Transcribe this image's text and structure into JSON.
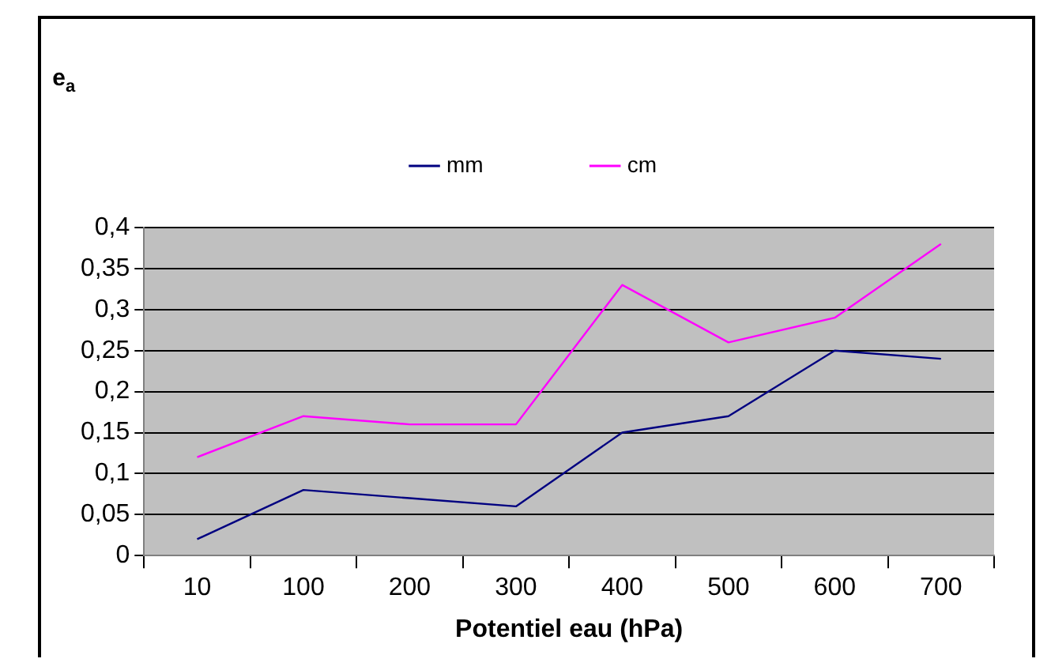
{
  "chart_data": {
    "type": "line",
    "xlabel": "Potentiel eau (hPa)",
    "ylabel": "e$_{a}$",
    "categories": [
      "10",
      "100",
      "200",
      "300",
      "400",
      "500",
      "600",
      "700"
    ],
    "series": [
      {
        "name": "mm",
        "color": "#000080",
        "values": [
          0.02,
          0.08,
          0.07,
          0.06,
          0.15,
          0.17,
          0.25,
          0.24
        ]
      },
      {
        "name": "cm",
        "color": "#ff00ff",
        "values": [
          0.12,
          0.17,
          0.16,
          0.16,
          0.33,
          0.26,
          0.29,
          0.38
        ]
      }
    ],
    "ylim": [
      0,
      0.4
    ],
    "yticks": [
      0,
      {
        "value": 0.05,
        "label": "0,05"
      },
      {
        "value": 0.1,
        "label": "0,1"
      },
      {
        "value": 0.15,
        "label": "0,15"
      },
      {
        "value": 0.2,
        "label": "0,2"
      },
      {
        "value": 0.25,
        "label": "0,25"
      },
      {
        "value": 0.3,
        "label": "0,3"
      },
      {
        "value": 0.35,
        "label": "0,35"
      },
      {
        "value": 0.4,
        "label": "0,4"
      }
    ],
    "grid": "y",
    "legend": "top",
    "marker": "none",
    "line_style": "solid"
  }
}
